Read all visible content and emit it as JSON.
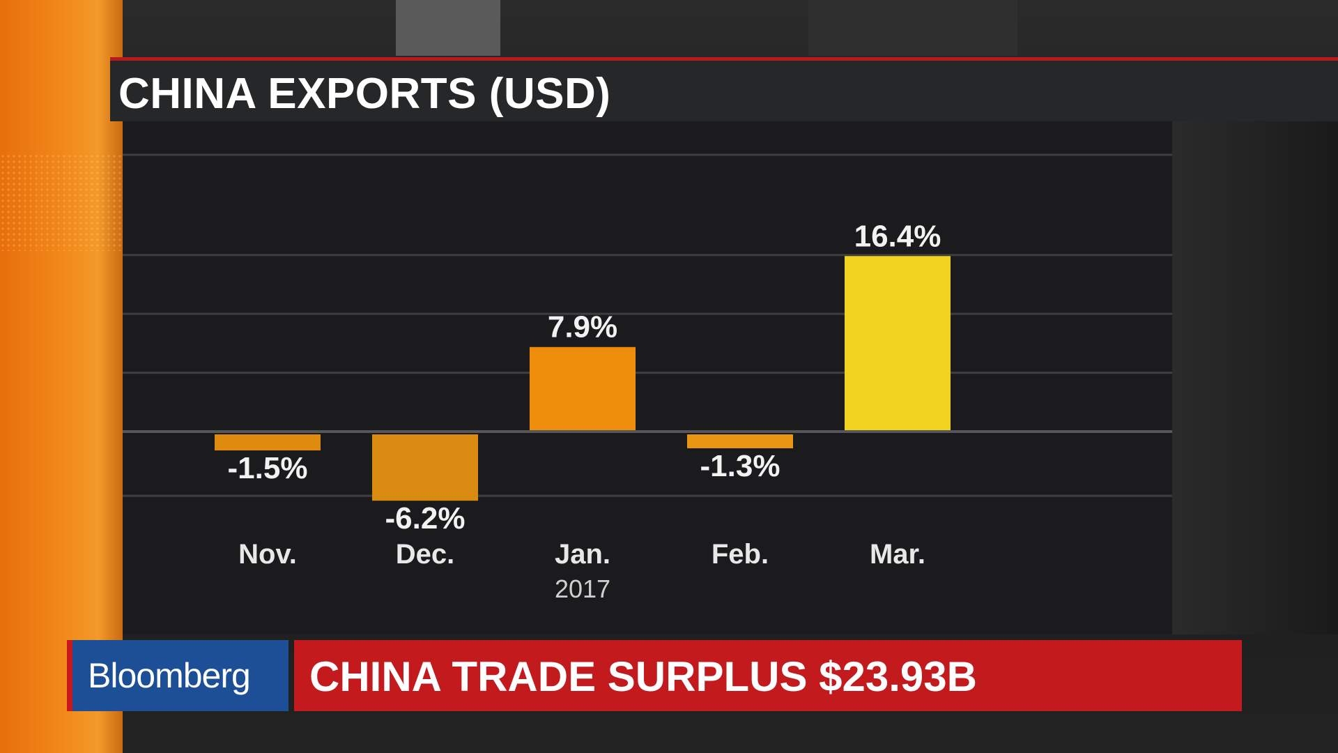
{
  "header": {
    "title": "CHINA EXPORTS (USD)"
  },
  "chart_data": {
    "type": "bar",
    "title": "CHINA EXPORTS (USD)",
    "categories": [
      "Nov.",
      "Dec.",
      "Jan.",
      "Feb.",
      "Mar."
    ],
    "category_sublabels": [
      "",
      "",
      "2017",
      "",
      ""
    ],
    "values": [
      -1.5,
      -6.2,
      7.9,
      -1.3,
      16.4
    ],
    "value_labels": [
      "-1.5%",
      "-6.2%",
      "7.9%",
      "-1.3%",
      "16.4%"
    ],
    "bar_colors": [
      "#e08a0e",
      "#d98a10",
      "#ee8c0b",
      "#e89512",
      "#f0d21f"
    ],
    "ylim": [
      -7,
      20
    ],
    "gridlines": [
      -6,
      0,
      5.5,
      11,
      16.5
    ],
    "grid": true,
    "xlabel": "",
    "ylabel": ""
  },
  "lower_third": {
    "brand": "Bloomberg",
    "headline": "CHINA TRADE SURPLUS $23.93B"
  },
  "colors": {
    "accent_red": "#c21a1d",
    "brand_blue": "#1d4f96",
    "orange": "#f28a1c"
  }
}
